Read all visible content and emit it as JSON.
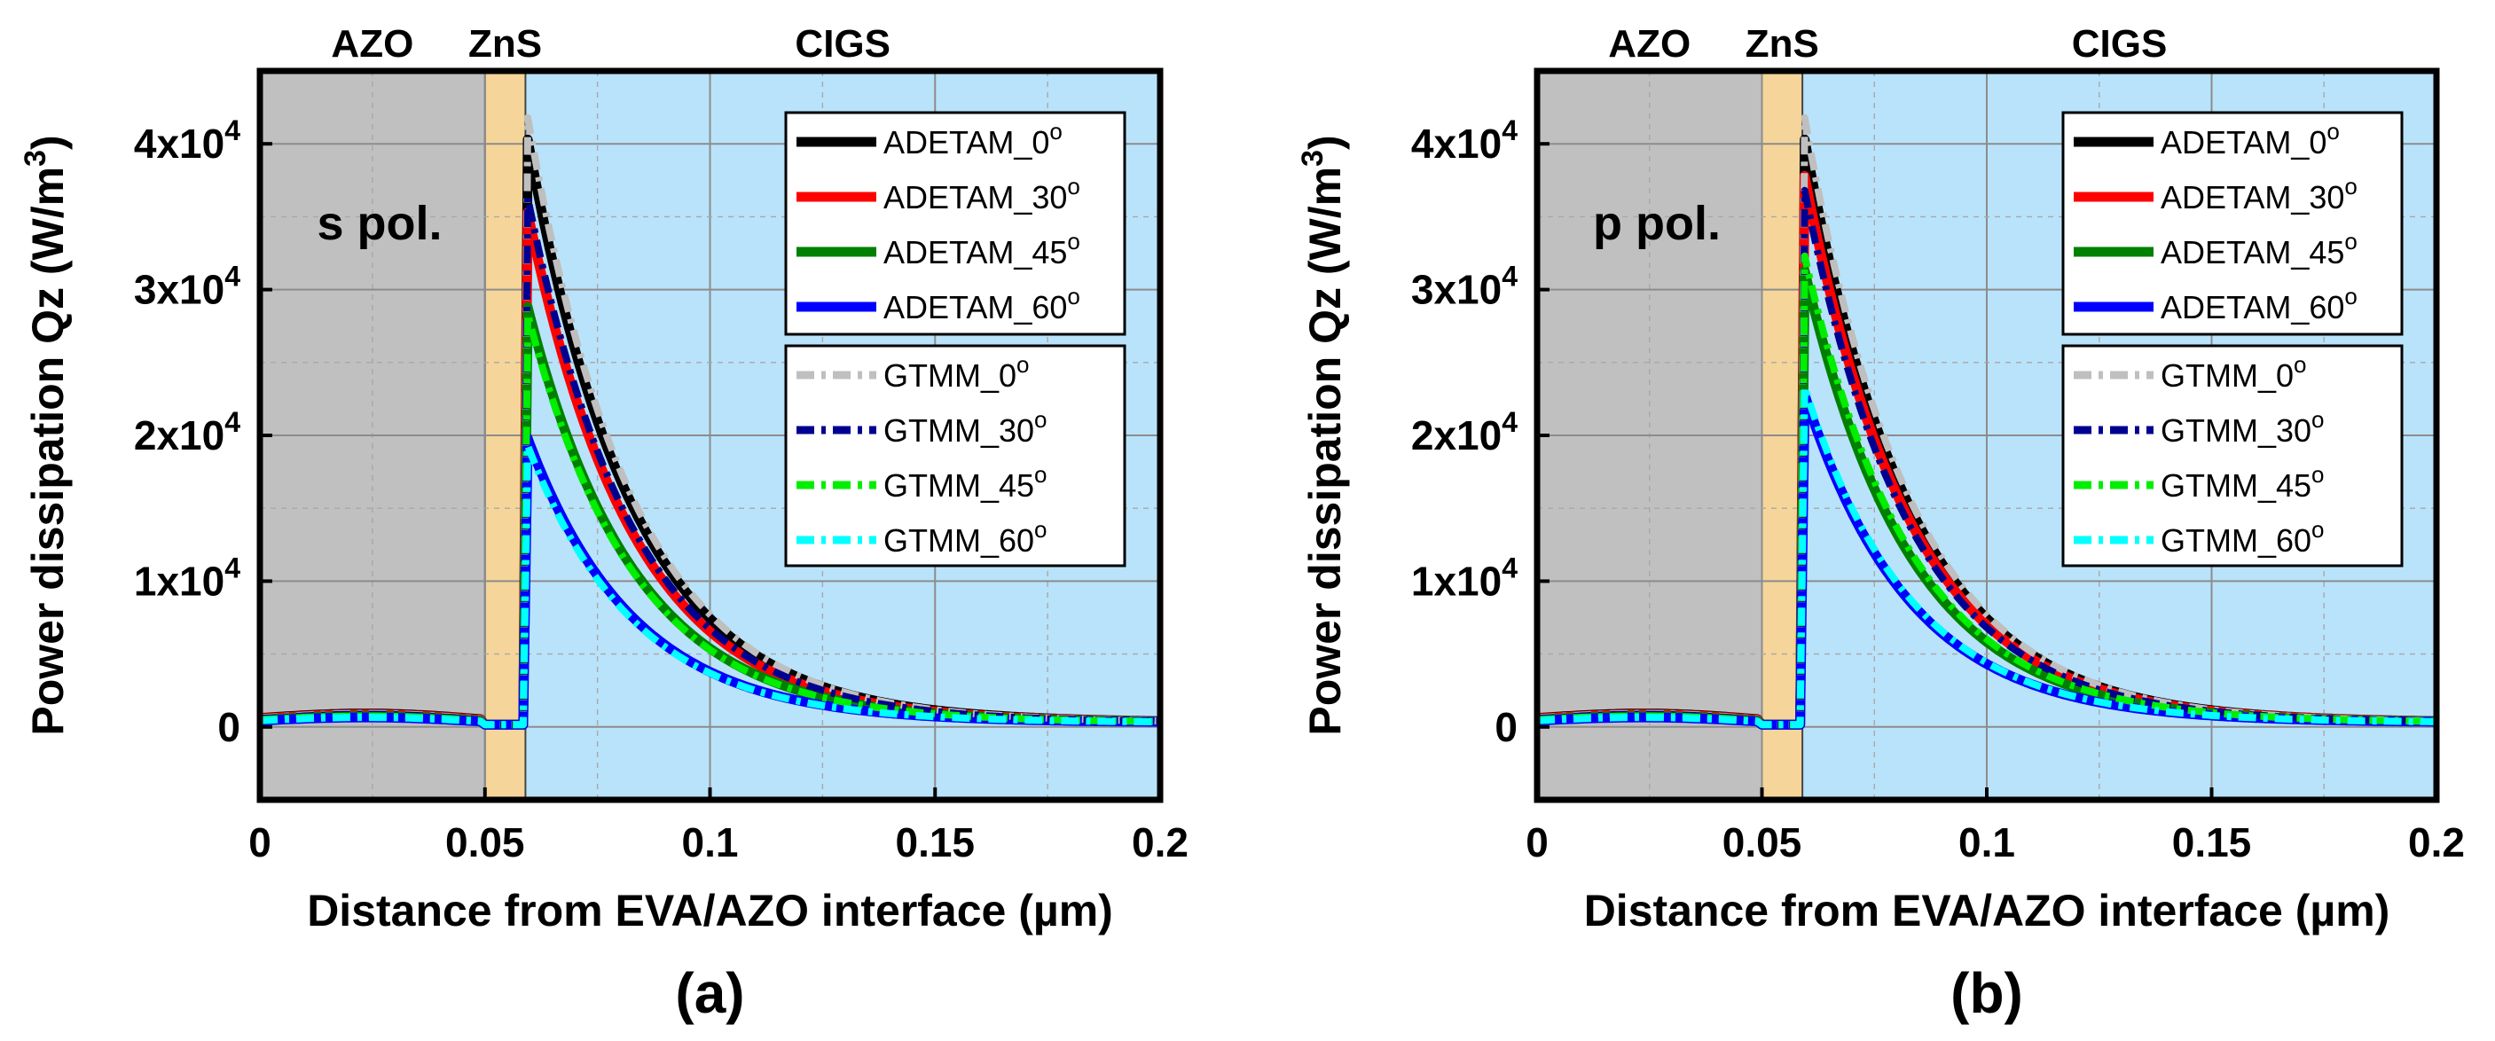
{
  "figure": {
    "x_tick_labels": [
      "0",
      "0.05",
      "0.1",
      "0.15",
      "0.2"
    ],
    "y_tick_labels": [
      {
        "value": 0,
        "mantissa": "0",
        "exponent": ""
      },
      {
        "value": 10000,
        "mantissa": "1x10",
        "exponent": "4"
      },
      {
        "value": 20000,
        "mantissa": "2x10",
        "exponent": "4"
      },
      {
        "value": 30000,
        "mantissa": "3x10",
        "exponent": "4"
      },
      {
        "value": 40000,
        "mantissa": "4x10",
        "exponent": "4"
      }
    ],
    "ylabel_main": "Power dissipation Qz (W/m",
    "ylabel_exp": "3",
    "ylabel_close": ")",
    "xlabel": "Distance from EVA/AZO interface (µm)",
    "regions": [
      {
        "name": "AZO",
        "from": 0,
        "to": 0.05,
        "color": "#c0c0c0"
      },
      {
        "name": "ZnS",
        "from": 0.05,
        "to": 0.059,
        "color": "#f5d59a"
      },
      {
        "name": "CIGS",
        "from": 0.059,
        "to": 0.2,
        "color": "#b9e3fa"
      }
    ],
    "series_styles": [
      {
        "name": "ADETAM_0",
        "label": "ADETAM_0",
        "sup": "o",
        "color": "#000000",
        "dash": "solid"
      },
      {
        "name": "ADETAM_30",
        "label": "ADETAM_30",
        "sup": "o",
        "color": "#ff0000",
        "dash": "solid"
      },
      {
        "name": "ADETAM_45",
        "label": "ADETAM_45",
        "sup": "o",
        "color": "#008000",
        "dash": "solid"
      },
      {
        "name": "ADETAM_60",
        "label": "ADETAM_60",
        "sup": "o",
        "color": "#0000ff",
        "dash": "solid"
      },
      {
        "name": "GTMM_0",
        "label": "GTMM_0",
        "sup": "o",
        "color": "#bfbfbf",
        "dash": "dashdot"
      },
      {
        "name": "GTMM_30",
        "label": "GTMM_30",
        "sup": "o",
        "color": "#000090",
        "dash": "dashdot"
      },
      {
        "name": "GTMM_45",
        "label": "GTMM_45",
        "sup": "o",
        "color": "#00ee00",
        "dash": "dashdot"
      },
      {
        "name": "GTMM_60",
        "label": "GTMM_60",
        "sup": "o",
        "color": "#00ffff",
        "dash": "dashdot"
      }
    ]
  },
  "chart_data": [
    {
      "type": "line",
      "panel_label": "(a)",
      "annotation": "s pol.",
      "xlabel": "Distance from EVA/AZO interface (µm)",
      "ylabel": "Power dissipation Qz (W/m3)",
      "xlim": [
        0,
        0.2
      ],
      "ylim": [
        -5000,
        45000
      ],
      "grid": true,
      "legend_position": "upper-right (two boxes)",
      "series": [
        {
          "name": "ADETAM_0",
          "peak_x": 0.0595,
          "peak": 40000,
          "decay": 0.0235,
          "azo": 850
        },
        {
          "name": "ADETAM_30",
          "peak_x": 0.0595,
          "peak": 35000,
          "decay": 0.0235,
          "azo": 800
        },
        {
          "name": "ADETAM_45",
          "peak_x": 0.0595,
          "peak": 28500,
          "decay": 0.0235,
          "azo": 700
        },
        {
          "name": "ADETAM_60",
          "peak_x": 0.0595,
          "peak": 19500,
          "decay": 0.0235,
          "azo": 600
        },
        {
          "name": "GTMM_0",
          "peak_x": 0.0595,
          "peak": 41500,
          "decay": 0.0235,
          "azo": 850
        },
        {
          "name": "GTMM_30",
          "peak_x": 0.0595,
          "peak": 36000,
          "decay": 0.0235,
          "azo": 800
        },
        {
          "name": "GTMM_45",
          "peak_x": 0.0595,
          "peak": 28000,
          "decay": 0.0235,
          "azo": 700
        },
        {
          "name": "GTMM_60",
          "peak_x": 0.0595,
          "peak": 19000,
          "decay": 0.0235,
          "azo": 600
        }
      ]
    },
    {
      "type": "line",
      "panel_label": "(b)",
      "annotation": "p pol.",
      "xlabel": "Distance from EVA/AZO interface (µm)",
      "ylabel": "Power dissipation Qz (W/m3)",
      "xlim": [
        0,
        0.2
      ],
      "ylim": [
        -5000,
        45000
      ],
      "grid": true,
      "legend_position": "upper-right (two boxes)",
      "series": [
        {
          "name": "ADETAM_0",
          "peak_x": 0.0595,
          "peak": 40000,
          "decay": 0.0235,
          "azo": 850
        },
        {
          "name": "ADETAM_30",
          "peak_x": 0.0595,
          "peak": 37500,
          "decay": 0.0235,
          "azo": 800
        },
        {
          "name": "ADETAM_45",
          "peak_x": 0.0595,
          "peak": 31000,
          "decay": 0.0235,
          "azo": 700
        },
        {
          "name": "ADETAM_60",
          "peak_x": 0.0595,
          "peak": 22500,
          "decay": 0.0235,
          "azo": 600
        },
        {
          "name": "GTMM_0",
          "peak_x": 0.0595,
          "peak": 41500,
          "decay": 0.0235,
          "azo": 850
        },
        {
          "name": "GTMM_30",
          "peak_x": 0.0595,
          "peak": 36500,
          "decay": 0.0235,
          "azo": 800
        },
        {
          "name": "GTMM_45",
          "peak_x": 0.0595,
          "peak": 32000,
          "decay": 0.0235,
          "azo": 700
        },
        {
          "name": "GTMM_60",
          "peak_x": 0.0595,
          "peak": 23000,
          "decay": 0.0235,
          "azo": 600
        }
      ]
    }
  ]
}
